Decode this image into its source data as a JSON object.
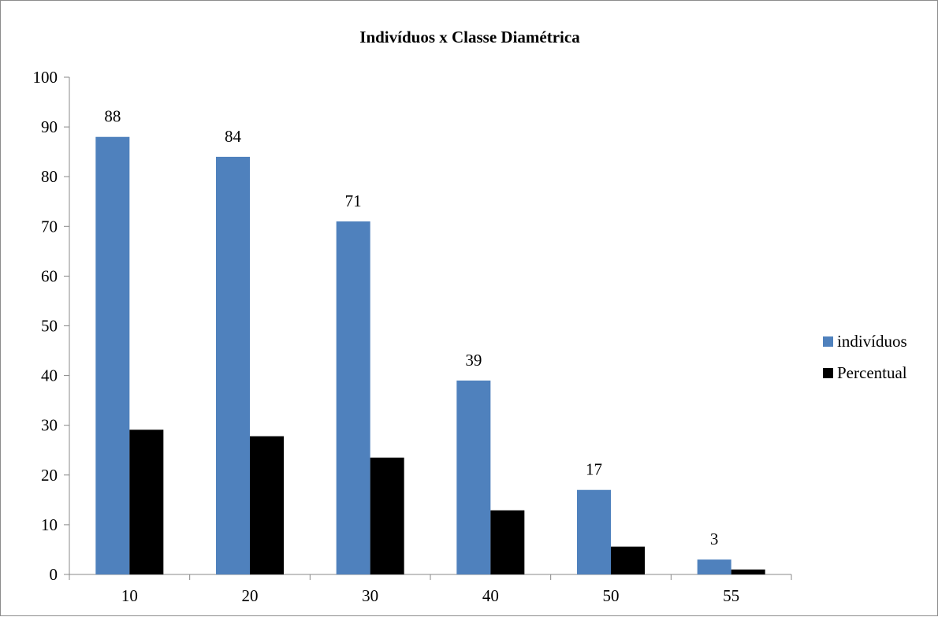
{
  "chart_data": {
    "type": "bar",
    "title": "Indivíduos x Classe Diamétrica",
    "xlabel": "",
    "ylabel": "",
    "categories": [
      "10",
      "20",
      "30",
      "40",
      "50",
      "55"
    ],
    "series": [
      {
        "name": "indivíduos",
        "values": [
          88,
          84,
          71,
          39,
          17,
          3
        ],
        "color": "#4f81bd",
        "data_labels": [
          "88",
          "84",
          "71",
          "39",
          "17",
          "3"
        ]
      },
      {
        "name": "Percentual",
        "values": [
          29.1,
          27.8,
          23.5,
          12.9,
          5.6,
          1.0
        ],
        "color": "#000000"
      }
    ],
    "ylim": [
      0,
      100
    ],
    "yticks": [
      "0",
      "10",
      "20",
      "30",
      "40",
      "50",
      "60",
      "70",
      "80",
      "90",
      "100"
    ],
    "grid": false,
    "legend_position": "right"
  }
}
